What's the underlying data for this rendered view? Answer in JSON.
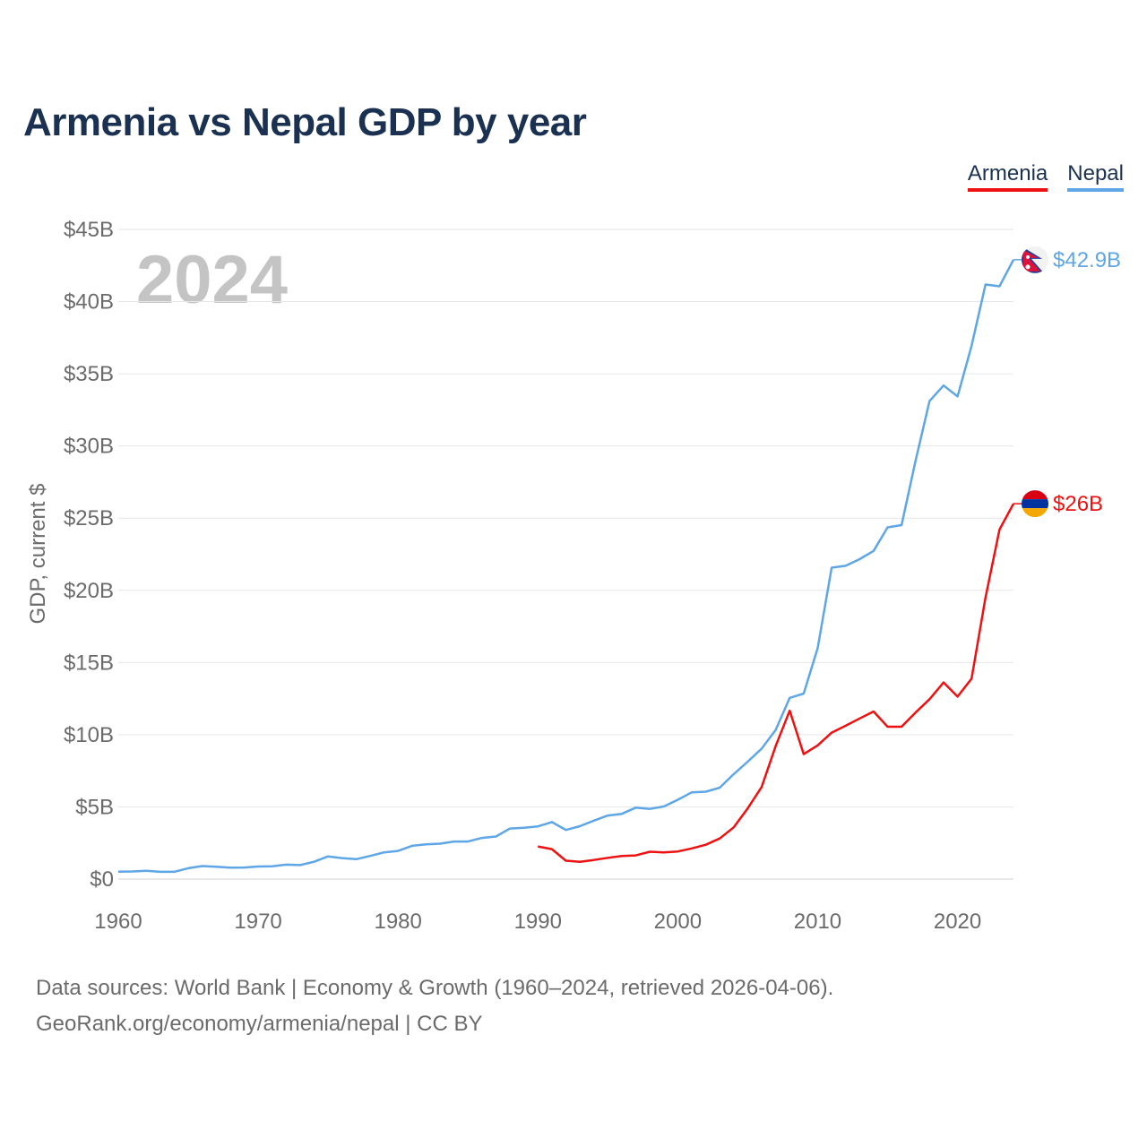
{
  "title": "Armenia vs Nepal GDP by year",
  "legend": {
    "armenia": {
      "label": "Armenia",
      "color": "#ee1111"
    },
    "nepal": {
      "label": "Nepal",
      "color": "#5ea6e6"
    }
  },
  "year_watermark": "2024",
  "sources": {
    "line1": "Data sources: World Bank | Economy & Growth (1960–2024, retrieved 2026-04-06).",
    "line2": "GeoRank.org/economy/armenia/nepal | CC BY"
  },
  "chart_data": {
    "type": "line",
    "title": "Armenia vs Nepal GDP by year",
    "xlabel": "",
    "ylabel": "GDP, current $",
    "xlim": [
      1960,
      2024
    ],
    "ylim": [
      0,
      45
    ],
    "y_unit": "billion USD",
    "x_ticks": [
      1960,
      1970,
      1980,
      1990,
      2000,
      2010,
      2020
    ],
    "y_ticks": [
      {
        "value": 0,
        "label": "$0"
      },
      {
        "value": 5,
        "label": "$5B"
      },
      {
        "value": 10,
        "label": "$10B"
      },
      {
        "value": 15,
        "label": "$15B"
      },
      {
        "value": 20,
        "label": "$20B"
      },
      {
        "value": 25,
        "label": "$25B"
      },
      {
        "value": 30,
        "label": "$30B"
      },
      {
        "value": 35,
        "label": "$35B"
      },
      {
        "value": 40,
        "label": "$40B"
      },
      {
        "value": 45,
        "label": "$45B"
      }
    ],
    "grid": true,
    "legend_position": "top-right",
    "series": [
      {
        "name": "Nepal",
        "color": "#5ea6e6",
        "end_label": "$42.9B",
        "flag": "nepal",
        "x": [
          1960,
          1961,
          1962,
          1963,
          1964,
          1965,
          1966,
          1967,
          1968,
          1969,
          1970,
          1971,
          1972,
          1973,
          1974,
          1975,
          1976,
          1977,
          1978,
          1979,
          1980,
          1981,
          1982,
          1983,
          1984,
          1985,
          1986,
          1987,
          1988,
          1989,
          1990,
          1991,
          1992,
          1993,
          1994,
          1995,
          1996,
          1997,
          1998,
          1999,
          2000,
          2001,
          2002,
          2003,
          2004,
          2005,
          2006,
          2007,
          2008,
          2009,
          2010,
          2011,
          2012,
          2013,
          2014,
          2015,
          2016,
          2017,
          2018,
          2019,
          2020,
          2021,
          2022,
          2023,
          2024
        ],
        "values": [
          0.51,
          0.53,
          0.57,
          0.5,
          0.5,
          0.75,
          0.9,
          0.85,
          0.79,
          0.8,
          0.87,
          0.88,
          1.0,
          0.97,
          1.2,
          1.57,
          1.45,
          1.38,
          1.6,
          1.85,
          1.95,
          2.3,
          2.4,
          2.45,
          2.6,
          2.6,
          2.85,
          2.95,
          3.5,
          3.55,
          3.65,
          3.95,
          3.4,
          3.66,
          4.05,
          4.4,
          4.52,
          4.95,
          4.86,
          5.03,
          5.49,
          6.01,
          6.05,
          6.33,
          7.27,
          8.13,
          9.04,
          10.33,
          12.55,
          12.85,
          16.0,
          21.57,
          21.7,
          22.16,
          22.73,
          24.36,
          24.52,
          28.97,
          33.11,
          34.19,
          33.43,
          36.93,
          41.18,
          41.06,
          42.9
        ]
      },
      {
        "name": "Armenia",
        "color": "#ee1111",
        "end_label": "$26B",
        "flag": "armenia",
        "x": [
          1990,
          1991,
          1992,
          1993,
          1994,
          1995,
          1996,
          1997,
          1998,
          1999,
          2000,
          2001,
          2002,
          2003,
          2004,
          2005,
          2006,
          2007,
          2008,
          2009,
          2010,
          2011,
          2012,
          2013,
          2014,
          2015,
          2016,
          2017,
          2018,
          2019,
          2020,
          2021,
          2022,
          2023,
          2024
        ],
        "values": [
          2.26,
          2.07,
          1.27,
          1.2,
          1.32,
          1.47,
          1.6,
          1.64,
          1.89,
          1.85,
          1.91,
          2.12,
          2.38,
          2.81,
          3.58,
          4.9,
          6.38,
          9.21,
          11.66,
          8.65,
          9.26,
          10.14,
          10.62,
          11.12,
          11.61,
          10.55,
          10.55,
          11.53,
          12.46,
          13.62,
          12.64,
          13.88,
          19.51,
          24.21,
          26.0
        ]
      }
    ]
  }
}
